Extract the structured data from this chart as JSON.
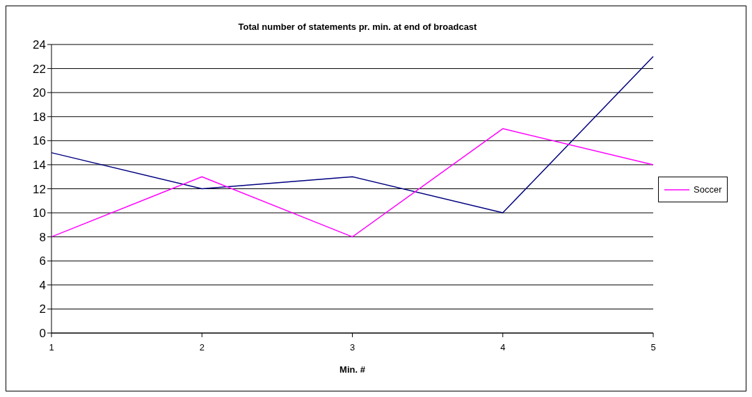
{
  "chart_data": {
    "type": "line",
    "title": "Total number of statements pr. min. at end of broadcast",
    "xlabel": "Min. #",
    "categories": [
      "1",
      "2",
      "3",
      "4",
      "5"
    ],
    "series": [
      {
        "color": "#000080",
        "values": [
          15,
          12,
          13,
          10,
          23
        ]
      },
      {
        "name": "Soccer",
        "color": "#ff00ff",
        "values": [
          8,
          13,
          8,
          17,
          14
        ]
      }
    ],
    "ylim": [
      0,
      24
    ],
    "yticks": [
      0,
      2,
      4,
      6,
      8,
      10,
      12,
      14,
      16,
      18,
      20,
      22,
      24
    ],
    "grid": "y",
    "legend": "right",
    "marker": "none",
    "line_style": "solid"
  }
}
